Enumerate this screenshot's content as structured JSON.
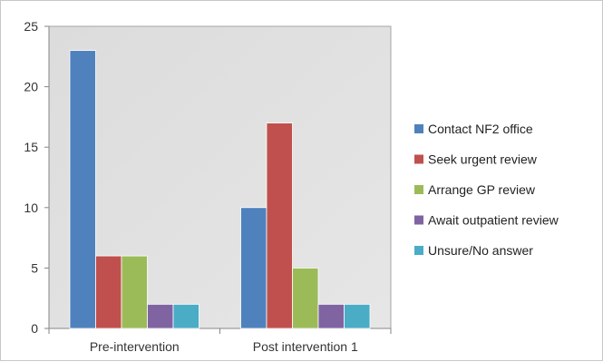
{
  "chart_data": {
    "type": "bar",
    "title": "",
    "xlabel": "",
    "ylabel": "",
    "ylim": [
      0,
      25
    ],
    "yticks": [
      0,
      5,
      10,
      15,
      20,
      25
    ],
    "grid": false,
    "plot_background": "#d9d9d9",
    "legend_position": "right",
    "categories": [
      "Pre-intervention",
      "Post intervention 1"
    ],
    "series": [
      {
        "name": "Contact NF2 office",
        "color": "#4f81bd",
        "values": [
          23,
          10
        ]
      },
      {
        "name": "Seek urgent review",
        "color": "#c0504d",
        "values": [
          6,
          17
        ]
      },
      {
        "name": "Arrange GP review",
        "color": "#9bbb59",
        "values": [
          6,
          5
        ]
      },
      {
        "name": "Await outpatient review",
        "color": "#8064a2",
        "values": [
          2,
          2
        ]
      },
      {
        "name": "Unsure/No answer",
        "color": "#4bacc6",
        "values": [
          2,
          2
        ]
      }
    ]
  }
}
